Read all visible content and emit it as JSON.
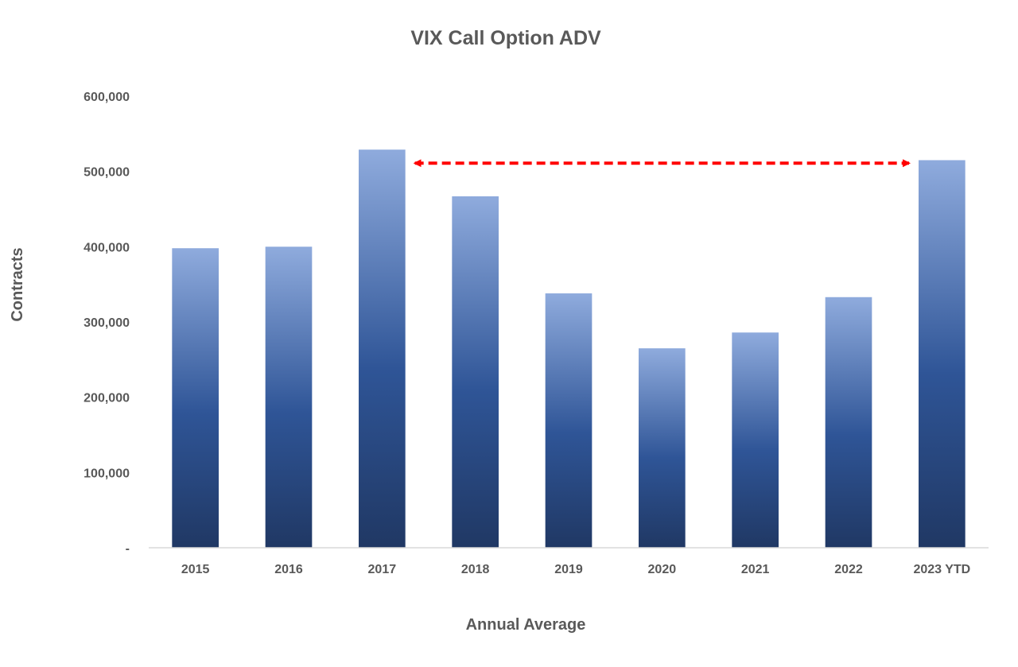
{
  "chart_data": {
    "type": "bar",
    "title": "VIX Call Option ADV",
    "xlabel": "Annual Average",
    "ylabel": "Contracts",
    "categories": [
      "2015",
      "2016",
      "2017",
      "2018",
      "2019",
      "2020",
      "2021",
      "2022",
      "2023 YTD"
    ],
    "values": [
      398000,
      400000,
      529000,
      467000,
      338000,
      265000,
      286000,
      333000,
      515000
    ],
    "ylim": [
      0,
      600000
    ],
    "yticks": [
      0,
      100000,
      200000,
      300000,
      400000,
      500000,
      600000
    ],
    "ytick_labels": [
      "-",
      "100,000",
      "200,000",
      "300,000",
      "400,000",
      "500,000",
      "600,000"
    ],
    "grid": false,
    "legend": "none",
    "colors": {
      "bar_top": "#8fabdd",
      "bar_mid": "#2f5597",
      "bar_bottom": "#203864",
      "axis": "#d9d9d9",
      "text": "#595959",
      "annotation_arrow": "#ff0000"
    },
    "annotations": [
      {
        "type": "double-arrow",
        "style": "dashed",
        "from_category": "2017",
        "to_category": "2023 YTD",
        "y_value": 511000
      }
    ]
  }
}
